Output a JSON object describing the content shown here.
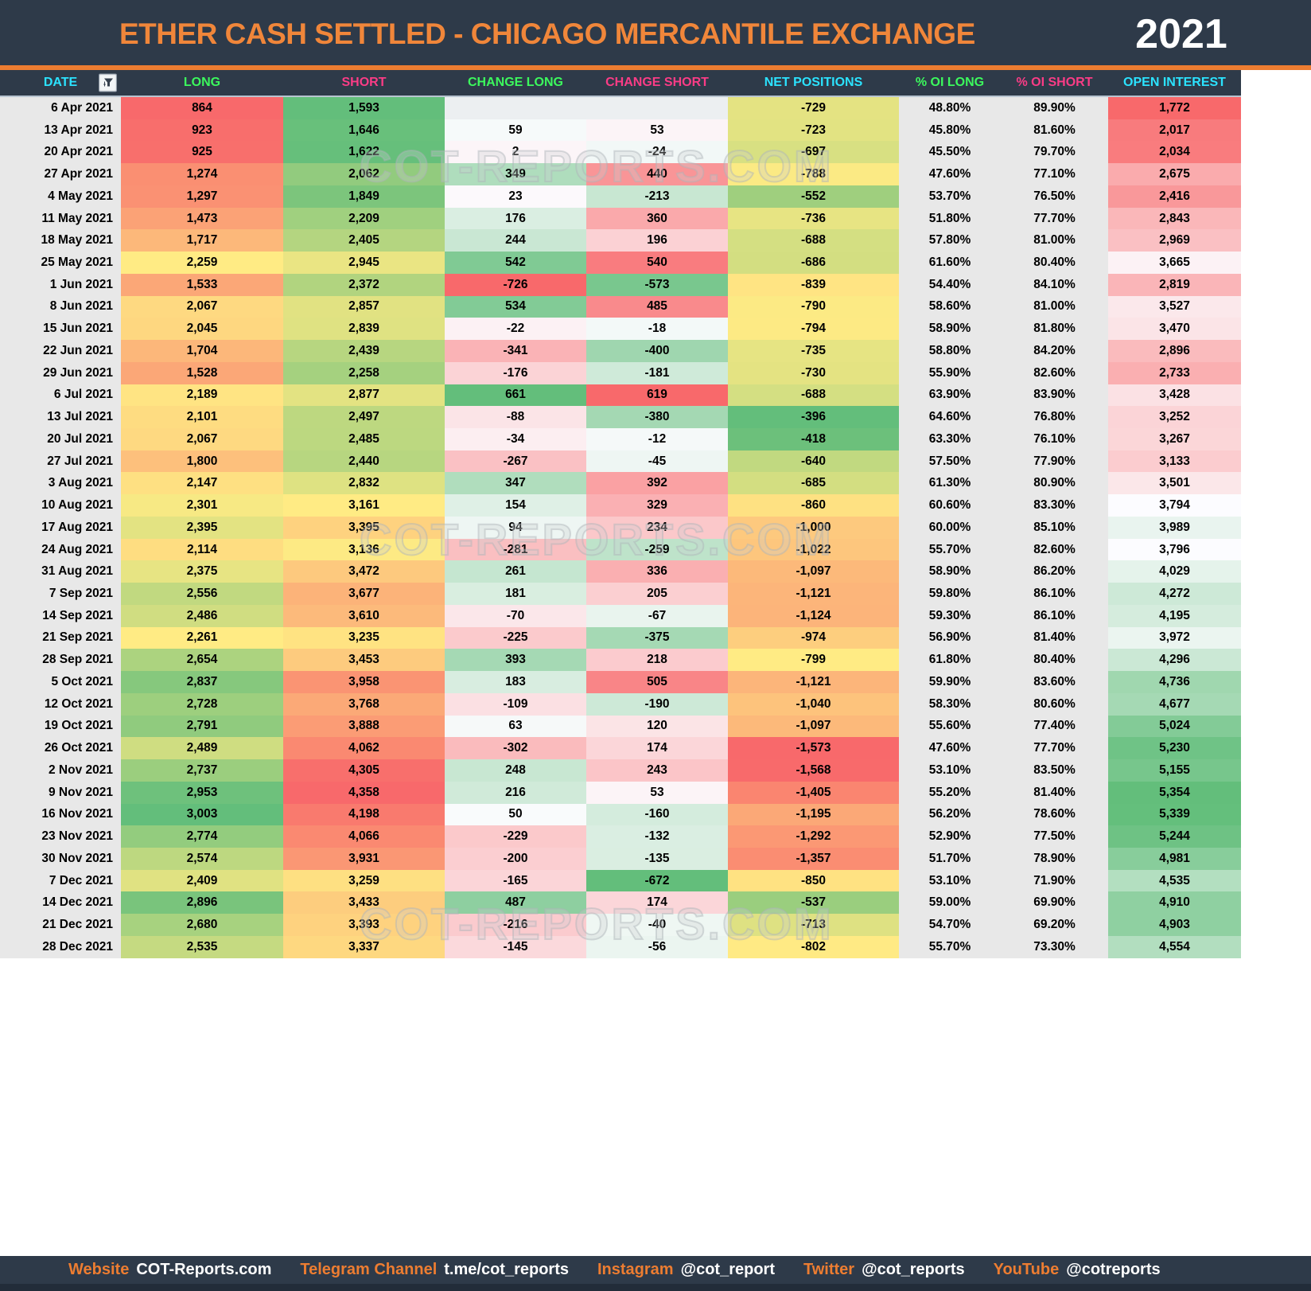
{
  "header": {
    "title": "ETHER CASH SETTLED - CHICAGO MERCANTILE EXCHANGE",
    "year": "2021"
  },
  "watermark": {
    "text": "COT-REPORTS.COM"
  },
  "columns": [
    {
      "label": "DATE",
      "color": "#2BE3FF"
    },
    {
      "label": "LONG",
      "color": "#3CF95D"
    },
    {
      "label": "SHORT",
      "color": "#FB3C86"
    },
    {
      "label": "CHANGE LONG",
      "color": "#3CF95D"
    },
    {
      "label": "CHANGE SHORT",
      "color": "#FB3C86"
    },
    {
      "label": "NET POSITIONS",
      "color": "#2BE3FF"
    },
    {
      "label": "% OI LONG",
      "color": "#3CF95D"
    },
    {
      "label": "% OI SHORT",
      "color": "#FB3C86"
    },
    {
      "label": "OPEN INTEREST",
      "color": "#2BE3FF"
    }
  ],
  "colors": {
    "navy": "#2E3A49",
    "accent_orange": "#ED7D31",
    "scale_red": "#F8696B",
    "scale_yellow": "#FFEB84",
    "scale_green": "#63BE7B",
    "scale_white": "#FCFCFF",
    "col_gray": "#E8E8E8",
    "blank_cell": "#ECEFF1"
  },
  "chart_data": {
    "type": "table",
    "title": "ETHER CASH SETTLED - CHICAGO MERCANTILE EXCHANGE 2021",
    "columns": [
      "DATE",
      "LONG",
      "SHORT",
      "CHANGE LONG",
      "CHANGE SHORT",
      "NET POSITIONS",
      "% OI LONG",
      "% OI SHORT",
      "OPEN INTEREST"
    ],
    "rows": [
      {
        "date": "6 Apr 2021",
        "long": 864,
        "short": 1593,
        "chg_long": null,
        "chg_short": null,
        "net": -729,
        "oi_long": 48.8,
        "oi_short": 89.9,
        "oi": 1772
      },
      {
        "date": "13 Apr 2021",
        "long": 923,
        "short": 1646,
        "chg_long": 59,
        "chg_short": 53,
        "net": -723,
        "oi_long": 45.8,
        "oi_short": 81.6,
        "oi": 2017
      },
      {
        "date": "20 Apr 2021",
        "long": 925,
        "short": 1622,
        "chg_long": 2,
        "chg_short": -24,
        "net": -697,
        "oi_long": 45.5,
        "oi_short": 79.7,
        "oi": 2034
      },
      {
        "date": "27 Apr 2021",
        "long": 1274,
        "short": 2062,
        "chg_long": 349,
        "chg_short": 440,
        "net": -788,
        "oi_long": 47.6,
        "oi_short": 77.1,
        "oi": 2675
      },
      {
        "date": "4 May 2021",
        "long": 1297,
        "short": 1849,
        "chg_long": 23,
        "chg_short": -213,
        "net": -552,
        "oi_long": 53.7,
        "oi_short": 76.5,
        "oi": 2416
      },
      {
        "date": "11 May 2021",
        "long": 1473,
        "short": 2209,
        "chg_long": 176,
        "chg_short": 360,
        "net": -736,
        "oi_long": 51.8,
        "oi_short": 77.7,
        "oi": 2843
      },
      {
        "date": "18 May 2021",
        "long": 1717,
        "short": 2405,
        "chg_long": 244,
        "chg_short": 196,
        "net": -688,
        "oi_long": 57.8,
        "oi_short": 81.0,
        "oi": 2969
      },
      {
        "date": "25 May 2021",
        "long": 2259,
        "short": 2945,
        "chg_long": 542,
        "chg_short": 540,
        "net": -686,
        "oi_long": 61.6,
        "oi_short": 80.4,
        "oi": 3665
      },
      {
        "date": "1 Jun 2021",
        "long": 1533,
        "short": 2372,
        "chg_long": -726,
        "chg_short": -573,
        "net": -839,
        "oi_long": 54.4,
        "oi_short": 84.1,
        "oi": 2819
      },
      {
        "date": "8 Jun 2021",
        "long": 2067,
        "short": 2857,
        "chg_long": 534,
        "chg_short": 485,
        "net": -790,
        "oi_long": 58.6,
        "oi_short": 81.0,
        "oi": 3527
      },
      {
        "date": "15 Jun 2021",
        "long": 2045,
        "short": 2839,
        "chg_long": -22,
        "chg_short": -18,
        "net": -794,
        "oi_long": 58.9,
        "oi_short": 81.8,
        "oi": 3470
      },
      {
        "date": "22 Jun 2021",
        "long": 1704,
        "short": 2439,
        "chg_long": -341,
        "chg_short": -400,
        "net": -735,
        "oi_long": 58.8,
        "oi_short": 84.2,
        "oi": 2896
      },
      {
        "date": "29 Jun 2021",
        "long": 1528,
        "short": 2258,
        "chg_long": -176,
        "chg_short": -181,
        "net": -730,
        "oi_long": 55.9,
        "oi_short": 82.6,
        "oi": 2733
      },
      {
        "date": "6 Jul 2021",
        "long": 2189,
        "short": 2877,
        "chg_long": 661,
        "chg_short": 619,
        "net": -688,
        "oi_long": 63.9,
        "oi_short": 83.9,
        "oi": 3428
      },
      {
        "date": "13 Jul 2021",
        "long": 2101,
        "short": 2497,
        "chg_long": -88,
        "chg_short": -380,
        "net": -396,
        "oi_long": 64.6,
        "oi_short": 76.8,
        "oi": 3252
      },
      {
        "date": "20 Jul 2021",
        "long": 2067,
        "short": 2485,
        "chg_long": -34,
        "chg_short": -12,
        "net": -418,
        "oi_long": 63.3,
        "oi_short": 76.1,
        "oi": 3267
      },
      {
        "date": "27 Jul 2021",
        "long": 1800,
        "short": 2440,
        "chg_long": -267,
        "chg_short": -45,
        "net": -640,
        "oi_long": 57.5,
        "oi_short": 77.9,
        "oi": 3133
      },
      {
        "date": "3 Aug 2021",
        "long": 2147,
        "short": 2832,
        "chg_long": 347,
        "chg_short": 392,
        "net": -685,
        "oi_long": 61.3,
        "oi_short": 80.9,
        "oi": 3501
      },
      {
        "date": "10 Aug 2021",
        "long": 2301,
        "short": 3161,
        "chg_long": 154,
        "chg_short": 329,
        "net": -860,
        "oi_long": 60.6,
        "oi_short": 83.3,
        "oi": 3794
      },
      {
        "date": "17 Aug 2021",
        "long": 2395,
        "short": 3395,
        "chg_long": 94,
        "chg_short": 234,
        "net": -1000,
        "oi_long": 60.0,
        "oi_short": 85.1,
        "oi": 3989
      },
      {
        "date": "24 Aug 2021",
        "long": 2114,
        "short": 3136,
        "chg_long": -281,
        "chg_short": -259,
        "net": -1022,
        "oi_long": 55.7,
        "oi_short": 82.6,
        "oi": 3796
      },
      {
        "date": "31 Aug 2021",
        "long": 2375,
        "short": 3472,
        "chg_long": 261,
        "chg_short": 336,
        "net": -1097,
        "oi_long": 58.9,
        "oi_short": 86.2,
        "oi": 4029
      },
      {
        "date": "7 Sep 2021",
        "long": 2556,
        "short": 3677,
        "chg_long": 181,
        "chg_short": 205,
        "net": -1121,
        "oi_long": 59.8,
        "oi_short": 86.1,
        "oi": 4272
      },
      {
        "date": "14 Sep 2021",
        "long": 2486,
        "short": 3610,
        "chg_long": -70,
        "chg_short": -67,
        "net": -1124,
        "oi_long": 59.3,
        "oi_short": 86.1,
        "oi": 4195
      },
      {
        "date": "21 Sep 2021",
        "long": 2261,
        "short": 3235,
        "chg_long": -225,
        "chg_short": -375,
        "net": -974,
        "oi_long": 56.9,
        "oi_short": 81.4,
        "oi": 3972
      },
      {
        "date": "28 Sep 2021",
        "long": 2654,
        "short": 3453,
        "chg_long": 393,
        "chg_short": 218,
        "net": -799,
        "oi_long": 61.8,
        "oi_short": 80.4,
        "oi": 4296
      },
      {
        "date": "5 Oct 2021",
        "long": 2837,
        "short": 3958,
        "chg_long": 183,
        "chg_short": 505,
        "net": -1121,
        "oi_long": 59.9,
        "oi_short": 83.6,
        "oi": 4736
      },
      {
        "date": "12 Oct 2021",
        "long": 2728,
        "short": 3768,
        "chg_long": -109,
        "chg_short": -190,
        "net": -1040,
        "oi_long": 58.3,
        "oi_short": 80.6,
        "oi": 4677
      },
      {
        "date": "19 Oct 2021",
        "long": 2791,
        "short": 3888,
        "chg_long": 63,
        "chg_short": 120,
        "net": -1097,
        "oi_long": 55.6,
        "oi_short": 77.4,
        "oi": 5024
      },
      {
        "date": "26 Oct 2021",
        "long": 2489,
        "short": 4062,
        "chg_long": -302,
        "chg_short": 174,
        "net": -1573,
        "oi_long": 47.6,
        "oi_short": 77.7,
        "oi": 5230
      },
      {
        "date": "2 Nov 2021",
        "long": 2737,
        "short": 4305,
        "chg_long": 248,
        "chg_short": 243,
        "net": -1568,
        "oi_long": 53.1,
        "oi_short": 83.5,
        "oi": 5155
      },
      {
        "date": "9 Nov 2021",
        "long": 2953,
        "short": 4358,
        "chg_long": 216,
        "chg_short": 53,
        "net": -1405,
        "oi_long": 55.2,
        "oi_short": 81.4,
        "oi": 5354
      },
      {
        "date": "16 Nov 2021",
        "long": 3003,
        "short": 4198,
        "chg_long": 50,
        "chg_short": -160,
        "net": -1195,
        "oi_long": 56.2,
        "oi_short": 78.6,
        "oi": 5339
      },
      {
        "date": "23 Nov 2021",
        "long": 2774,
        "short": 4066,
        "chg_long": -229,
        "chg_short": -132,
        "net": -1292,
        "oi_long": 52.9,
        "oi_short": 77.5,
        "oi": 5244
      },
      {
        "date": "30 Nov 2021",
        "long": 2574,
        "short": 3931,
        "chg_long": -200,
        "chg_short": -135,
        "net": -1357,
        "oi_long": 51.7,
        "oi_short": 78.9,
        "oi": 4981
      },
      {
        "date": "7 Dec 2021",
        "long": 2409,
        "short": 3259,
        "chg_long": -165,
        "chg_short": -672,
        "net": -850,
        "oi_long": 53.1,
        "oi_short": 71.9,
        "oi": 4535
      },
      {
        "date": "14 Dec 2021",
        "long": 2896,
        "short": 3433,
        "chg_long": 487,
        "chg_short": 174,
        "net": -537,
        "oi_long": 59.0,
        "oi_short": 69.9,
        "oi": 4910
      },
      {
        "date": "21 Dec 2021",
        "long": 2680,
        "short": 3393,
        "chg_long": -216,
        "chg_short": -40,
        "net": -713,
        "oi_long": 54.7,
        "oi_short": 69.2,
        "oi": 4903
      },
      {
        "date": "28 Dec 2021",
        "long": 2535,
        "short": 3337,
        "chg_long": -145,
        "chg_short": -56,
        "net": -802,
        "oi_long": 55.7,
        "oi_short": 73.3,
        "oi": 4554
      }
    ]
  },
  "footer": {
    "items": [
      {
        "label": "Website",
        "value": "COT-Reports.com"
      },
      {
        "label": "Telegram Channel",
        "value": "t.me/cot_reports"
      },
      {
        "label": "Instagram",
        "value": "@cot_report"
      },
      {
        "label": "Twitter",
        "value": "@cot_reports"
      },
      {
        "label": "YouTube",
        "value": "@cotreports"
      }
    ]
  }
}
